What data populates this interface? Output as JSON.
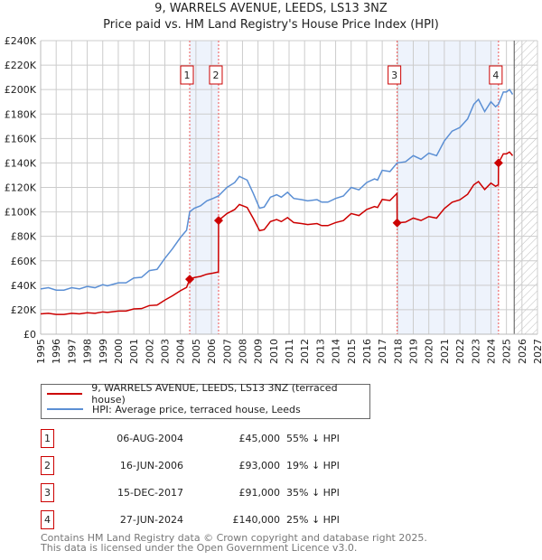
{
  "chart_data": {
    "type": "line",
    "title": "9, WARRELS AVENUE, LEEDS, LS13 3NZ",
    "subtitle": "Price paid vs. HM Land Registry's House Price Index (HPI)",
    "xlim": [
      1995,
      2027
    ],
    "ylim": [
      0,
      240000
    ],
    "x_ticks": [
      "1995",
      "1996",
      "1997",
      "1998",
      "1999",
      "2000",
      "2001",
      "2002",
      "2003",
      "2004",
      "2005",
      "2006",
      "2007",
      "2008",
      "2009",
      "2010",
      "2011",
      "2012",
      "2013",
      "2014",
      "2015",
      "2016",
      "2017",
      "2018",
      "2019",
      "2020",
      "2021",
      "2022",
      "2023",
      "2024",
      "2025",
      "2026",
      "2027"
    ],
    "y_ticks": [
      {
        "v": 0,
        "label": "£0"
      },
      {
        "v": 20000,
        "label": "£20K"
      },
      {
        "v": 40000,
        "label": "£40K"
      },
      {
        "v": 60000,
        "label": "£60K"
      },
      {
        "v": 80000,
        "label": "£80K"
      },
      {
        "v": 100000,
        "label": "£100K"
      },
      {
        "v": 120000,
        "label": "£120K"
      },
      {
        "v": 140000,
        "label": "£140K"
      },
      {
        "v": 160000,
        "label": "£160K"
      },
      {
        "v": 180000,
        "label": "£180K"
      },
      {
        "v": 200000,
        "label": "£200K"
      },
      {
        "v": 220000,
        "label": "£220K"
      },
      {
        "v": 240000,
        "label": "£240K"
      }
    ],
    "grid": true,
    "forecast_hatch_from": 2025.5,
    "series": [
      {
        "name": "9, WARRELS AVENUE, LEEDS, LS13 3NZ (terraced house)",
        "color": "#cc0000",
        "derived_from": "hpi indexed to each sale"
      },
      {
        "name": "HPI: Average price, terraced house, Leeds",
        "color": "#5b8fd4",
        "x": [
          1995,
          1995.5,
          1996,
          1996.5,
          1997,
          1997.5,
          1998,
          1998.5,
          1999,
          1999.3,
          2000,
          2000.5,
          2001,
          2001.5,
          2002,
          2002.5,
          2003,
          2003.5,
          2004,
          2004.4,
          2004.6,
          2004.9,
          2005.3,
          2005.7,
          2006.1,
          2006.45,
          2007,
          2007.5,
          2007.8,
          2008.3,
          2008.7,
          2009.1,
          2009.4,
          2009.8,
          2010.2,
          2010.5,
          2010.9,
          2011.3,
          2011.8,
          2012.2,
          2012.8,
          2013.1,
          2013.5,
          2014,
          2014.5,
          2015,
          2015.5,
          2016,
          2016.5,
          2016.7,
          2017,
          2017.5,
          2017.96,
          2018.5,
          2019,
          2019.5,
          2020,
          2020.5,
          2021,
          2021.5,
          2022,
          2022.5,
          2022.9,
          2023.2,
          2023.6,
          2024,
          2024.3,
          2024.49,
          2024.8,
          2025,
          2025.2,
          2025.4
        ],
        "values": [
          37000,
          38000,
          36000,
          36000,
          38000,
          37000,
          39000,
          38000,
          40500,
          39500,
          42000,
          42000,
          46000,
          46500,
          52000,
          53000,
          62000,
          70000,
          79000,
          85000,
          100000,
          103000,
          105000,
          109000,
          111000,
          113000,
          120000,
          124000,
          129000,
          126000,
          115000,
          103000,
          104000,
          112000,
          114000,
          112000,
          116000,
          111000,
          110000,
          109000,
          110000,
          108000,
          108000,
          111000,
          113000,
          120000,
          118000,
          124000,
          127000,
          126000,
          134000,
          133000,
          140000,
          141000,
          146000,
          143000,
          148000,
          146000,
          158000,
          166000,
          169000,
          176000,
          188000,
          192000,
          182000,
          190000,
          186000,
          188000,
          198000,
          198000,
          200000,
          196000
        ]
      }
    ],
    "sales": [
      {
        "id": "1",
        "x": 2004.6,
        "price": 45000,
        "date": "06-AUG-2004",
        "price_label": "£45,000",
        "hpi_label": "55% ↓ HPI"
      },
      {
        "id": "2",
        "x": 2006.46,
        "price": 93000,
        "date": "16-JUN-2006",
        "price_label": "£93,000",
        "hpi_label": "19% ↓ HPI"
      },
      {
        "id": "3",
        "x": 2017.96,
        "price": 91000,
        "date": "15-DEC-2017",
        "price_label": "£91,000",
        "hpi_label": "35% ↓ HPI"
      },
      {
        "id": "4",
        "x": 2024.49,
        "price": 140000,
        "date": "27-JUN-2024",
        "price_label": "£140,000",
        "hpi_label": "25% ↓ HPI"
      }
    ],
    "shaded_ranges": [
      [
        2004.6,
        2006.46
      ],
      [
        2017.96,
        2024.49
      ]
    ]
  },
  "legend": {
    "property": "9, WARRELS AVENUE, LEEDS, LS13 3NZ (terraced house)",
    "hpi": "HPI: Average price, terraced house, Leeds"
  },
  "footer": {
    "line1": "Contains HM Land Registry data © Crown copyright and database right 2025.",
    "line2": "This data is licensed under the Open Government Licence v3.0."
  }
}
